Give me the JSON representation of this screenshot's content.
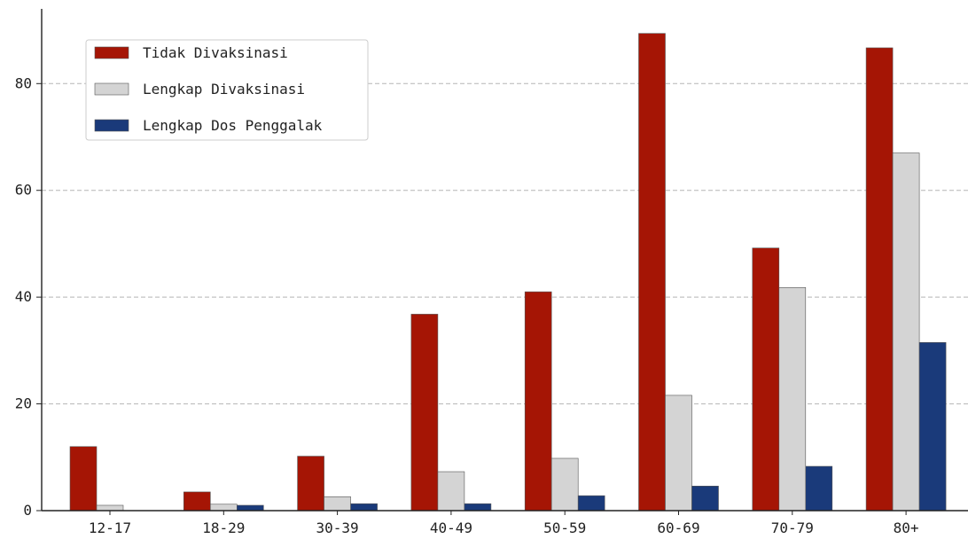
{
  "chart_data": {
    "type": "bar",
    "title": "",
    "xlabel": "",
    "ylabel": "",
    "categories": [
      "12-17",
      "18-29",
      "30-39",
      "40-49",
      "50-59",
      "60-69",
      "70-79",
      "80+"
    ],
    "series": [
      {
        "name": "Tidak Divaksinasi",
        "color": "#a51505",
        "values": [
          12.0,
          3.5,
          10.2,
          36.8,
          41.0,
          89.4,
          49.2,
          86.7
        ]
      },
      {
        "name": "Lengkap Divaksinasi",
        "color": "#d4d4d4",
        "values": [
          1.0,
          1.2,
          2.6,
          7.3,
          9.8,
          21.6,
          41.8,
          67.0
        ]
      },
      {
        "name": "Lengkap Dos Penggalak",
        "color": "#1a3a7a",
        "values": [
          0,
          1.0,
          1.3,
          1.3,
          2.8,
          4.6,
          8.3,
          31.5
        ]
      }
    ],
    "ylim": [
      0,
      94
    ],
    "yticks": [
      0,
      20,
      40,
      60,
      80
    ],
    "grid": "horizontal-dashed",
    "legend_position": "top-left"
  }
}
